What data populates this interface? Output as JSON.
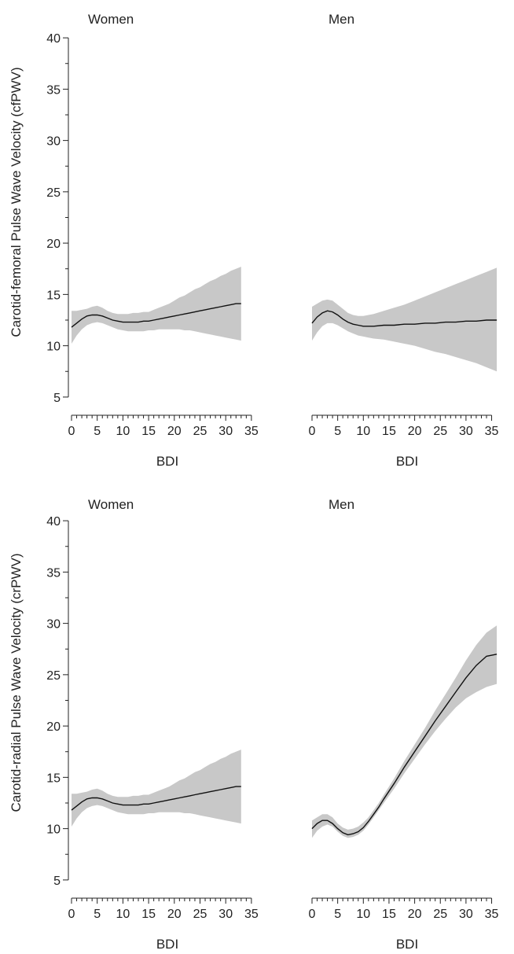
{
  "colors": {
    "band": "#c8c8c8",
    "line": "#111111",
    "axis": "#222222"
  },
  "chart_data": [
    {
      "type": "line",
      "title": "Women",
      "xlabel": "BDI",
      "ylabel": "Carotid-femoral Pulse Wave Velocity (cfPWV)",
      "xlim": [
        0,
        33
      ],
      "ylim": [
        5,
        41
      ],
      "xticks": [
        0,
        5,
        10,
        15,
        20,
        25,
        30,
        35
      ],
      "yticks": [
        5,
        10,
        15,
        20,
        25,
        30,
        35,
        40
      ],
      "x": [
        0,
        1,
        2,
        3,
        4,
        5,
        6,
        7,
        8,
        9,
        10,
        11,
        12,
        13,
        14,
        15,
        16,
        17,
        18,
        19,
        20,
        21,
        22,
        23,
        24,
        25,
        26,
        27,
        28,
        29,
        30,
        31,
        32,
        33
      ],
      "y": [
        11.8,
        12.2,
        12.6,
        12.9,
        13.0,
        13.0,
        12.9,
        12.7,
        12.5,
        12.4,
        12.3,
        12.3,
        12.3,
        12.3,
        12.4,
        12.4,
        12.5,
        12.6,
        12.7,
        12.8,
        12.9,
        13.0,
        13.1,
        13.2,
        13.3,
        13.4,
        13.5,
        13.6,
        13.7,
        13.8,
        13.9,
        14.0,
        14.1,
        14.1
      ],
      "lower": [
        10.2,
        11.0,
        11.6,
        12.0,
        12.2,
        12.3,
        12.2,
        12.0,
        11.8,
        11.6,
        11.5,
        11.4,
        11.4,
        11.4,
        11.4,
        11.5,
        11.5,
        11.6,
        11.6,
        11.6,
        11.6,
        11.6,
        11.5,
        11.5,
        11.4,
        11.3,
        11.2,
        11.1,
        11.0,
        10.9,
        10.8,
        10.7,
        10.6,
        10.5
      ],
      "upper": [
        13.4,
        13.4,
        13.5,
        13.6,
        13.8,
        13.9,
        13.7,
        13.4,
        13.2,
        13.1,
        13.1,
        13.1,
        13.2,
        13.2,
        13.3,
        13.3,
        13.5,
        13.7,
        13.9,
        14.1,
        14.4,
        14.7,
        14.9,
        15.2,
        15.5,
        15.7,
        16.0,
        16.3,
        16.5,
        16.8,
        17.0,
        17.3,
        17.5,
        17.7
      ]
    },
    {
      "type": "line",
      "title": "Men",
      "xlabel": "BDI",
      "ylabel": "",
      "xlim": [
        0,
        36
      ],
      "ylim": [
        5,
        41
      ],
      "xticks": [
        0,
        5,
        10,
        15,
        20,
        25,
        30,
        35
      ],
      "yticks": [],
      "x": [
        0,
        1,
        2,
        3,
        4,
        5,
        6,
        7,
        8,
        9,
        10,
        11,
        12,
        14,
        16,
        18,
        20,
        22,
        24,
        26,
        28,
        30,
        32,
        34,
        36
      ],
      "y": [
        12.2,
        12.8,
        13.2,
        13.4,
        13.3,
        13.0,
        12.6,
        12.3,
        12.1,
        12.0,
        11.9,
        11.9,
        11.9,
        12.0,
        12.0,
        12.1,
        12.1,
        12.2,
        12.2,
        12.3,
        12.3,
        12.4,
        12.4,
        12.5,
        12.5
      ],
      "lower": [
        10.5,
        11.3,
        11.9,
        12.2,
        12.2,
        12.0,
        11.7,
        11.4,
        11.2,
        11.0,
        10.9,
        10.8,
        10.7,
        10.6,
        10.4,
        10.2,
        10.0,
        9.7,
        9.4,
        9.2,
        8.9,
        8.6,
        8.3,
        7.9,
        7.5
      ],
      "upper": [
        13.8,
        14.1,
        14.4,
        14.5,
        14.4,
        14.0,
        13.6,
        13.2,
        13.0,
        12.9,
        12.9,
        13.0,
        13.1,
        13.4,
        13.7,
        14.0,
        14.4,
        14.8,
        15.2,
        15.6,
        16.0,
        16.4,
        16.8,
        17.2,
        17.6
      ]
    },
    {
      "type": "line",
      "title": "Women",
      "xlabel": "BDI",
      "ylabel": "Carotid-radial Pulse Wave Velocity (crPWV)",
      "xlim": [
        0,
        33
      ],
      "ylim": [
        5,
        41
      ],
      "xticks": [
        0,
        5,
        10,
        15,
        20,
        25,
        30,
        35
      ],
      "yticks": [
        5,
        10,
        15,
        20,
        25,
        30,
        35,
        40
      ],
      "x": [
        0,
        1,
        2,
        3,
        4,
        5,
        6,
        7,
        8,
        9,
        10,
        11,
        12,
        13,
        14,
        15,
        16,
        17,
        18,
        19,
        20,
        21,
        22,
        23,
        24,
        25,
        26,
        27,
        28,
        29,
        30,
        31,
        32,
        33
      ],
      "y": [
        11.8,
        12.2,
        12.6,
        12.9,
        13.0,
        13.0,
        12.9,
        12.7,
        12.5,
        12.4,
        12.3,
        12.3,
        12.3,
        12.3,
        12.4,
        12.4,
        12.5,
        12.6,
        12.7,
        12.8,
        12.9,
        13.0,
        13.1,
        13.2,
        13.3,
        13.4,
        13.5,
        13.6,
        13.7,
        13.8,
        13.9,
        14.0,
        14.1,
        14.1
      ],
      "lower": [
        10.2,
        11.0,
        11.6,
        12.0,
        12.2,
        12.3,
        12.2,
        12.0,
        11.8,
        11.6,
        11.5,
        11.4,
        11.4,
        11.4,
        11.4,
        11.5,
        11.5,
        11.6,
        11.6,
        11.6,
        11.6,
        11.6,
        11.5,
        11.5,
        11.4,
        11.3,
        11.2,
        11.1,
        11.0,
        10.9,
        10.8,
        10.7,
        10.6,
        10.5
      ],
      "upper": [
        13.4,
        13.4,
        13.5,
        13.6,
        13.8,
        13.9,
        13.7,
        13.4,
        13.2,
        13.1,
        13.1,
        13.1,
        13.2,
        13.2,
        13.3,
        13.3,
        13.5,
        13.7,
        13.9,
        14.1,
        14.4,
        14.7,
        14.9,
        15.2,
        15.5,
        15.7,
        16.0,
        16.3,
        16.5,
        16.8,
        17.0,
        17.3,
        17.5,
        17.7
      ]
    },
    {
      "type": "line",
      "title": "Men",
      "xlabel": "BDI",
      "ylabel": "",
      "xlim": [
        0,
        36
      ],
      "ylim": [
        5,
        41
      ],
      "xticks": [
        0,
        5,
        10,
        15,
        20,
        25,
        30,
        35
      ],
      "yticks": [],
      "x": [
        0,
        1,
        2,
        3,
        4,
        5,
        6,
        7,
        8,
        9,
        10,
        11,
        12,
        13,
        14,
        16,
        18,
        20,
        22,
        24,
        26,
        28,
        30,
        32,
        34,
        36
      ],
      "y": [
        10.0,
        10.5,
        10.8,
        10.8,
        10.5,
        10.0,
        9.6,
        9.4,
        9.5,
        9.7,
        10.1,
        10.7,
        11.4,
        12.1,
        12.9,
        14.4,
        16.0,
        17.5,
        19.0,
        20.5,
        21.9,
        23.3,
        24.7,
        25.9,
        26.8,
        27.0
      ],
      "lower": [
        9.1,
        9.8,
        10.2,
        10.4,
        10.2,
        9.7,
        9.3,
        9.1,
        9.2,
        9.4,
        9.8,
        10.4,
        11.1,
        11.8,
        12.5,
        13.9,
        15.4,
        16.8,
        18.2,
        19.5,
        20.7,
        21.8,
        22.7,
        23.3,
        23.8,
        24.1
      ],
      "upper": [
        10.8,
        11.1,
        11.4,
        11.4,
        11.1,
        10.5,
        10.1,
        9.9,
        10.0,
        10.2,
        10.6,
        11.1,
        11.8,
        12.5,
        13.3,
        14.9,
        16.6,
        18.2,
        19.8,
        21.5,
        23.1,
        24.7,
        26.4,
        27.9,
        29.1,
        29.8
      ]
    }
  ]
}
